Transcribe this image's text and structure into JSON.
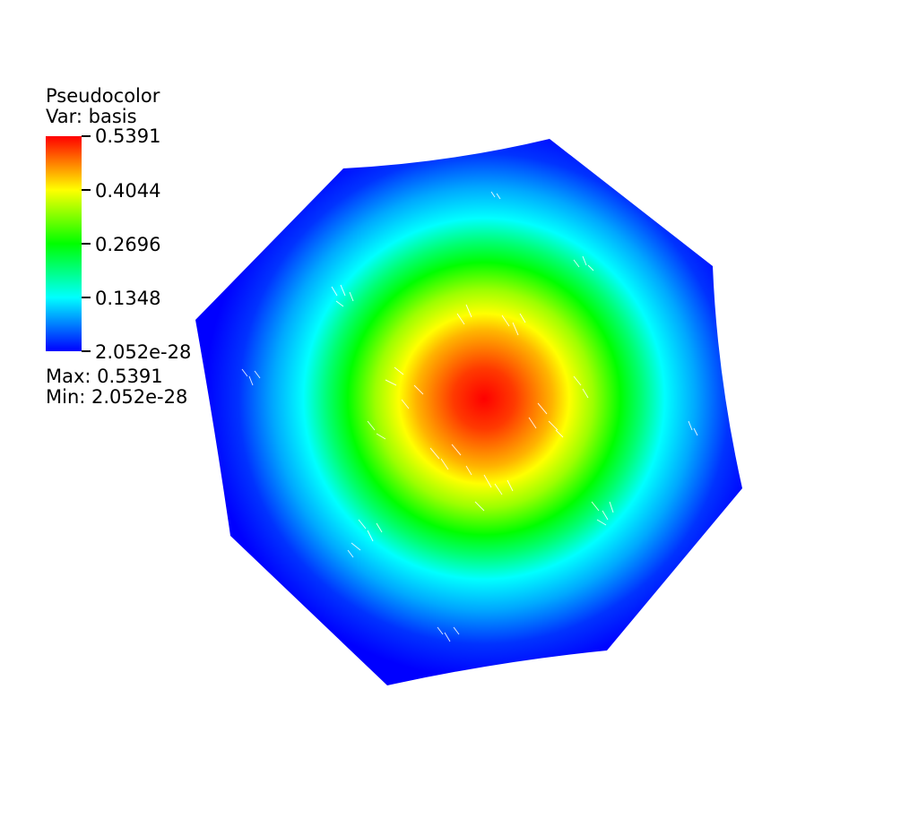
{
  "plot": {
    "title": "Pseudocolor",
    "variable_line": "Var: basis",
    "colormap": [
      "#0000ff",
      "#00ffff",
      "#00ff00",
      "#ffff00",
      "#ff0000"
    ],
    "background": "#ffffff",
    "ticks": [
      "0.5391",
      "0.4044",
      "0.2696",
      "0.1348",
      "2.052e-28"
    ],
    "max_label": "Max:  0.5391",
    "min_label": "Min:  2.052e-28",
    "max_value": 0.5391,
    "min_value": 2.052e-28
  }
}
